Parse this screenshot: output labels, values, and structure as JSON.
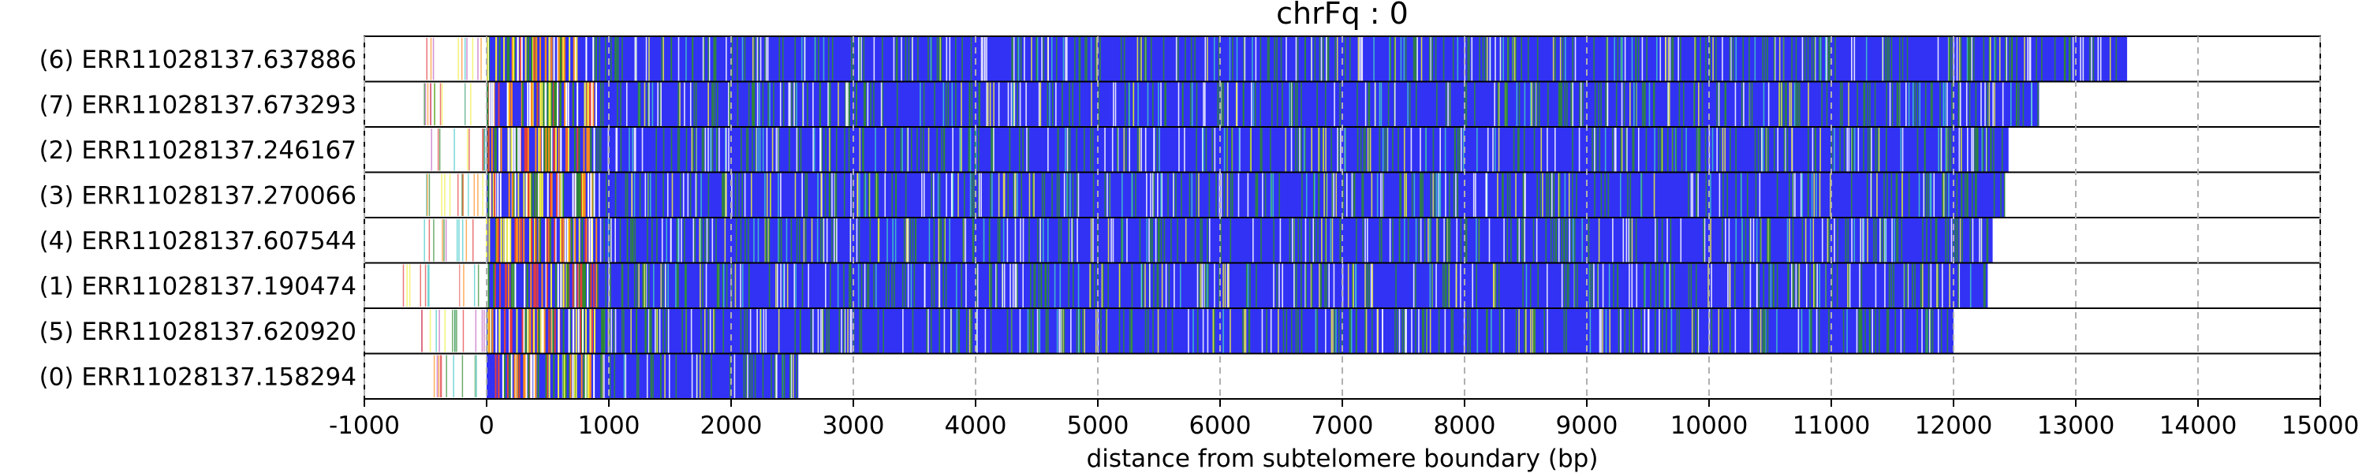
{
  "chart_data": {
    "type": "bar",
    "title": "chrFq : 0",
    "xlabel": "distance from subtelomere boundary (bp)",
    "ylabel": "",
    "xlim": [
      -1000,
      15000
    ],
    "xticks": [
      -1000,
      0,
      1000,
      2000,
      3000,
      4000,
      5000,
      6000,
      7000,
      8000,
      9000,
      10000,
      11000,
      12000,
      13000,
      14000,
      15000
    ],
    "grid": "vertical-dashed",
    "colors": {
      "bar": "#3232f5",
      "stripes": [
        "#2e8b2e",
        "#f0f040",
        "#ffffff",
        "#e33d3d",
        "#40c8c8",
        "#c060c0",
        "#ff8c1a"
      ]
    },
    "reads": [
      {
        "label": "(6) ERR11028137.637886",
        "start": -550,
        "end": 13420
      },
      {
        "label": "(7) ERR11028137.673293",
        "start": -520,
        "end": 12700
      },
      {
        "label": "(2) ERR11028137.246167",
        "start": -530,
        "end": 12450
      },
      {
        "label": "(3) ERR11028137.270066",
        "start": -540,
        "end": 12420
      },
      {
        "label": "(4) ERR11028137.607544",
        "start": -510,
        "end": 12320
      },
      {
        "label": "(1) ERR11028137.190474",
        "start": -700,
        "end": 12280
      },
      {
        "label": "(5) ERR11028137.620920",
        "start": -560,
        "end": 12000
      },
      {
        "label": "(0) ERR11028137.158294",
        "start": -500,
        "end": 2550
      }
    ]
  }
}
